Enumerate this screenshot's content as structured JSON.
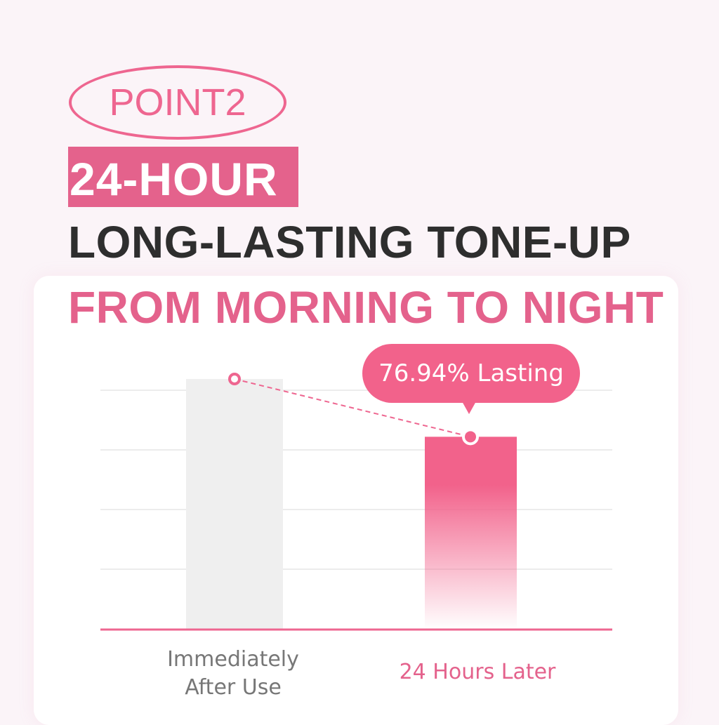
{
  "header": {
    "badge": "POINT2",
    "highlight": "24-HOUR",
    "line2": "LONG-LASTING TONE-UP",
    "line3": "FROM MORNING TO NIGHT"
  },
  "colors": {
    "accent": "#e4628c",
    "bar_pink": "#f2628b",
    "bar_gray": "#efefef",
    "background": "#fbf4f8"
  },
  "chart_data": {
    "type": "bar",
    "categories": [
      "Immediately After Use",
      "24 Hours Later"
    ],
    "category_lines": [
      [
        "Immediately",
        "After Use"
      ],
      [
        "24 Hours Later"
      ]
    ],
    "values": [
      100,
      76.94
    ],
    "annotation": "76.94% Lasting",
    "grid": true,
    "connector": "dashed line between bar tops"
  }
}
